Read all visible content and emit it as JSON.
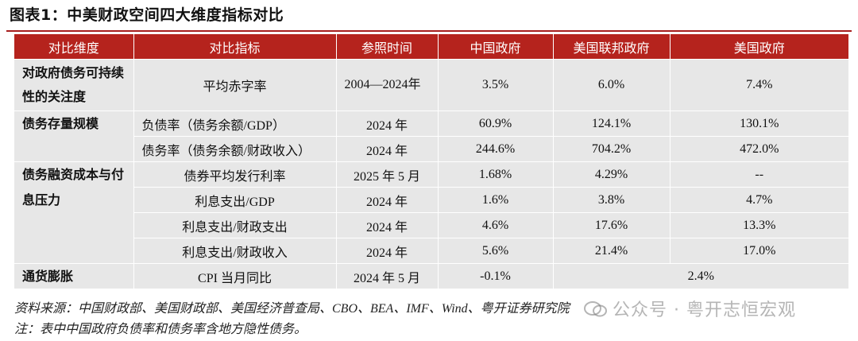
{
  "title": "图表1：中美财政空间四大维度指标对比",
  "columns": [
    "对比维度",
    "对比指标",
    "参照时间",
    "中国政府",
    "美国联邦政府",
    "美国政府"
  ],
  "groups": [
    {
      "dimension": "对政府债务可持续性的关注度",
      "rows": [
        {
          "indicator": "平均赤字率",
          "time": "2004—2024年",
          "china": "3.5%",
          "us_federal": "6.0%",
          "us_gov": "7.4%"
        }
      ]
    },
    {
      "dimension": "债务存量规模",
      "rows": [
        {
          "indicator": "负债率（债务余额/GDP）",
          "time": "2024 年",
          "china": "60.9%",
          "us_federal": "124.1%",
          "us_gov": "130.1%"
        },
        {
          "indicator": "债务率（债务余额/财政收入）",
          "time": "2024 年",
          "china": "244.6%",
          "us_federal": "704.2%",
          "us_gov": "472.0%"
        }
      ]
    },
    {
      "dimension": "债务融资成本与付息压力",
      "rows": [
        {
          "indicator": "债券平均发行利率",
          "time": "2025 年 5 月",
          "china": "1.68%",
          "us_federal": "4.29%",
          "us_gov": "--"
        },
        {
          "indicator": "利息支出/GDP",
          "time": "2024 年",
          "china": "1.6%",
          "us_federal": "3.8%",
          "us_gov": "4.7%"
        },
        {
          "indicator": "利息支出/财政支出",
          "time": "2024 年",
          "china": "4.6%",
          "us_federal": "17.6%",
          "us_gov": "13.3%"
        },
        {
          "indicator": "利息支出/财政收入",
          "time": "2024 年",
          "china": "5.6%",
          "us_federal": "21.4%",
          "us_gov": "17.0%"
        }
      ]
    },
    {
      "dimension": "通货膨胀",
      "rows": [
        {
          "indicator": "CPI 当月同比",
          "time": "2024 年 5 月",
          "china": "-0.1%",
          "us_merged": "2.4%"
        }
      ]
    }
  ],
  "source": "资料来源：中国财政部、美国财政部、美国经济普查局、CBO、BEA、IMF、Wind、粤开证券研究院",
  "note": "注：表中中国政府负债率和债务率含地方隐性债务。",
  "watermark": "公众号 · 粤开志恒宏观",
  "colors": {
    "header_bg": "#b5231d",
    "shade_bg": "#e7e7e7",
    "rule": "#a71e1e"
  }
}
